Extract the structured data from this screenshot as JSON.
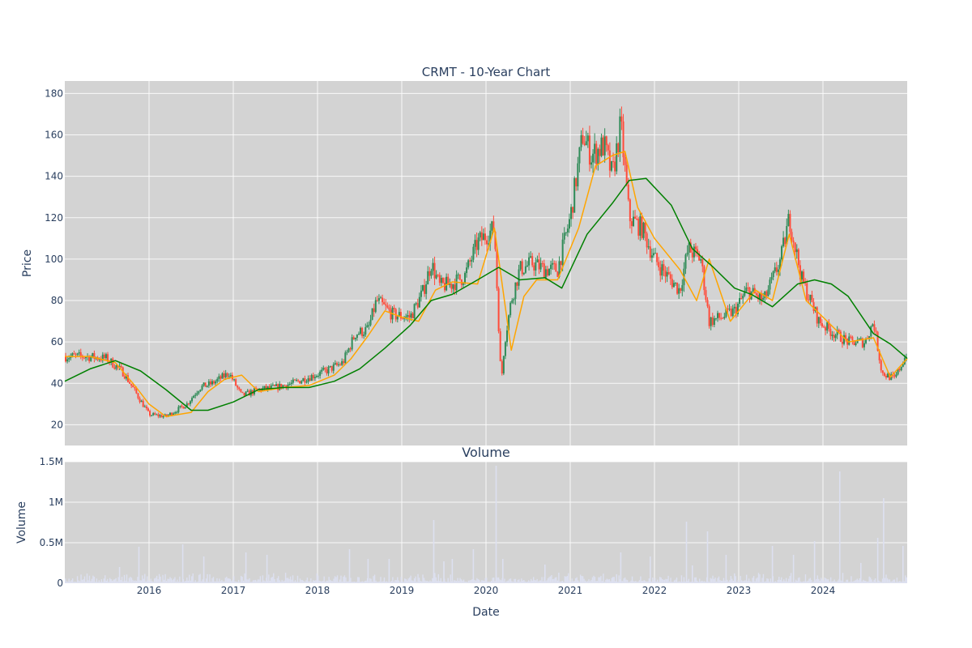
{
  "chart_data": [
    {
      "type": "candlestick",
      "title": "CRMT - 10-Year Chart",
      "ylabel": "Price",
      "xlabel": "",
      "xlim": [
        2015.0,
        2025.0
      ],
      "ylim": [
        10,
        186
      ],
      "yticks": [
        20,
        40,
        60,
        80,
        100,
        120,
        140,
        160,
        180
      ],
      "xticks": [
        2016,
        2017,
        2018,
        2019,
        2020,
        2021,
        2022,
        2023,
        2024
      ],
      "grid": true,
      "colors": {
        "up": "#2e8b57",
        "down": "#ff4b3a",
        "ma_short": "#ffa500",
        "ma_long": "#008000",
        "background": "#d3d3d3"
      },
      "series": [
        {
          "kind": "price_close",
          "x": [
            2015.0,
            2015.25,
            2015.5,
            2015.7,
            2015.85,
            2016.0,
            2016.2,
            2016.45,
            2016.6,
            2016.75,
            2016.95,
            2017.1,
            2017.3,
            2017.5,
            2017.7,
            2017.9,
            2018.1,
            2018.3,
            2018.45,
            2018.6,
            2018.7,
            2018.9,
            2019.1,
            2019.25,
            2019.35,
            2019.45,
            2019.6,
            2019.75,
            2019.9,
            2020.1,
            2020.18,
            2020.22,
            2020.3,
            2020.4,
            2020.55,
            2020.7,
            2020.85,
            2021.0,
            2021.15,
            2021.25,
            2021.4,
            2021.5,
            2021.6,
            2021.7,
            2021.85,
            2022.0,
            2022.15,
            2022.3,
            2022.4,
            2022.55,
            2022.65,
            2022.8,
            2022.95,
            2023.1,
            2023.3,
            2023.5,
            2023.6,
            2023.75,
            2023.95,
            2024.1,
            2024.3,
            2024.5,
            2024.6,
            2024.7,
            2024.85,
            2025.0
          ],
          "values": [
            53,
            53,
            52,
            45,
            35,
            25,
            24,
            30,
            38,
            40,
            45,
            34,
            37,
            38,
            40,
            43,
            46,
            50,
            64,
            66,
            80,
            73,
            72,
            84,
            98,
            87,
            88,
            92,
            108,
            115,
            40,
            60,
            80,
            95,
            98,
            95,
            95,
            120,
            160,
            150,
            155,
            140,
            165,
            120,
            115,
            100,
            92,
            85,
            105,
            100,
            70,
            72,
            75,
            85,
            80,
            100,
            120,
            90,
            70,
            65,
            60,
            60,
            70,
            45,
            42,
            55
          ]
        },
        {
          "name": "",
          "kind": "ma_short",
          "x": [
            2015.0,
            2015.3,
            2015.6,
            2015.85,
            2016.0,
            2016.2,
            2016.5,
            2016.7,
            2016.9,
            2017.1,
            2017.3,
            2017.6,
            2017.9,
            2018.2,
            2018.4,
            2018.6,
            2018.8,
            2019.0,
            2019.2,
            2019.4,
            2019.6,
            2019.9,
            2020.1,
            2020.3,
            2020.45,
            2020.6,
            2020.85,
            2021.1,
            2021.3,
            2021.5,
            2021.65,
            2021.8,
            2022.0,
            2022.3,
            2022.5,
            2022.65,
            2022.9,
            2023.2,
            2023.4,
            2023.6,
            2023.8,
            2024.0,
            2024.3,
            2024.6,
            2024.8,
            2025.0
          ],
          "values": [
            53,
            53,
            50,
            38,
            30,
            24,
            26,
            36,
            42,
            44,
            36,
            38,
            39,
            44,
            52,
            63,
            75,
            72,
            70,
            85,
            89,
            88,
            115,
            56,
            82,
            90,
            90,
            115,
            145,
            150,
            152,
            125,
            110,
            95,
            80,
            100,
            70,
            85,
            80,
            112,
            80,
            72,
            60,
            62,
            43,
            52
          ]
        },
        {
          "name": "",
          "kind": "ma_long",
          "x": [
            2015.0,
            2015.3,
            2015.6,
            2015.9,
            2016.2,
            2016.5,
            2016.7,
            2017.0,
            2017.3,
            2017.6,
            2017.9,
            2018.2,
            2018.5,
            2018.8,
            2019.1,
            2019.35,
            2019.6,
            2019.9,
            2020.15,
            2020.4,
            2020.7,
            2020.9,
            2021.2,
            2021.5,
            2021.7,
            2021.9,
            2022.2,
            2022.45,
            2022.7,
            2022.95,
            2023.15,
            2023.4,
            2023.7,
            2023.9,
            2024.1,
            2024.3,
            2024.6,
            2024.8,
            2025.0
          ],
          "values": [
            41,
            47,
            51,
            46,
            37,
            27,
            27,
            31,
            37,
            38,
            38,
            41,
            47,
            57,
            68,
            80,
            83,
            90,
            96,
            90,
            91,
            86,
            112,
            127,
            138,
            139,
            126,
            105,
            96,
            86,
            83,
            77,
            88,
            90,
            88,
            82,
            64,
            59,
            52
          ]
        }
      ]
    },
    {
      "type": "bar",
      "title": "Volume",
      "ylabel": "Volume",
      "xlabel": "Date",
      "xlim": [
        2015.0,
        2025.0
      ],
      "ylim": [
        0,
        1500000
      ],
      "yticks": [
        0,
        500000,
        1000000,
        1500000
      ],
      "ytick_labels": [
        "0",
        "0.5M",
        "1M",
        "1.5M"
      ],
      "xticks": [
        2016,
        2017,
        2018,
        2019,
        2020,
        2021,
        2022,
        2023,
        2024
      ],
      "grid": true,
      "colors": {
        "bar": "#dde0f0"
      },
      "spikes": {
        "x": [
          2015.65,
          2015.88,
          2016.4,
          2016.65,
          2017.15,
          2017.4,
          2018.38,
          2018.6,
          2018.85,
          2019.38,
          2019.5,
          2019.6,
          2019.85,
          2020.12,
          2020.2,
          2020.7,
          2021.6,
          2021.95,
          2022.38,
          2022.45,
          2022.63,
          2022.85,
          2023.4,
          2023.65,
          2023.9,
          2024.2,
          2024.45,
          2024.65,
          2024.72,
          2024.95
        ],
        "values": [
          200000,
          450000,
          480000,
          330000,
          380000,
          350000,
          420000,
          300000,
          300000,
          780000,
          270000,
          300000,
          420000,
          1450000,
          300000,
          230000,
          380000,
          330000,
          760000,
          220000,
          640000,
          350000,
          460000,
          350000,
          520000,
          1380000,
          250000,
          560000,
          1050000,
          460000
        ]
      },
      "baseline": {
        "low": 15000,
        "high": 140000
      }
    }
  ]
}
